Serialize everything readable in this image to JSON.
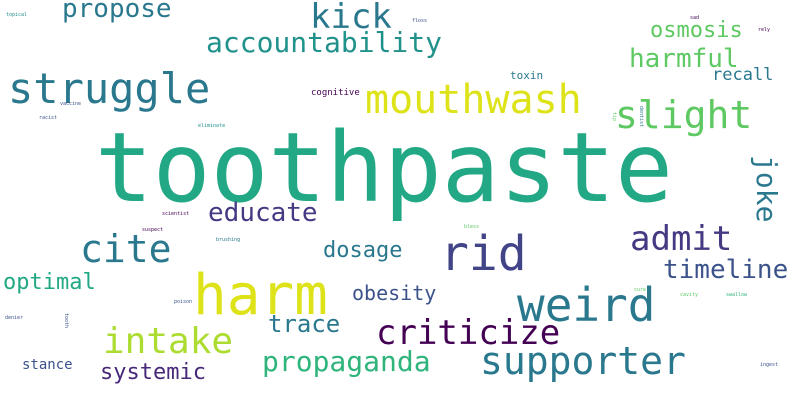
{
  "words": [
    {
      "text": "toothpaste",
      "color": "#22a884"
    },
    {
      "text": "harm",
      "color": "#dde318"
    },
    {
      "text": "struggle",
      "color": "#2a788e"
    },
    {
      "text": "mouthwash",
      "color": "#dde318"
    },
    {
      "text": "weird",
      "color": "#2a788e"
    },
    {
      "text": "rid",
      "color": "#414487"
    },
    {
      "text": "slight",
      "color": "#5ec962"
    },
    {
      "text": "cite",
      "color": "#2a788e"
    },
    {
      "text": "supporter",
      "color": "#2a788e"
    },
    {
      "text": "criticize",
      "color": "#440154"
    },
    {
      "text": "admit",
      "color": "#443983"
    },
    {
      "text": "intake",
      "color": "#addc30"
    },
    {
      "text": "accountability",
      "color": "#21918c"
    },
    {
      "text": "kick",
      "color": "#2a788e"
    },
    {
      "text": "propaganda",
      "color": "#2fb47c"
    },
    {
      "text": "propose",
      "color": "#2a788e"
    },
    {
      "text": "educate",
      "color": "#443983"
    },
    {
      "text": "timeline",
      "color": "#3b528b"
    },
    {
      "text": "joke",
      "color": "#2a788e"
    },
    {
      "text": "harmful",
      "color": "#5ec962"
    },
    {
      "text": "osmosis",
      "color": "#5ec962"
    },
    {
      "text": "trace",
      "color": "#2a788e"
    },
    {
      "text": "optimal",
      "color": "#22a884"
    },
    {
      "text": "systemic",
      "color": "#482878"
    },
    {
      "text": "dosage",
      "color": "#2a788e"
    },
    {
      "text": "obesity",
      "color": "#3b528b"
    },
    {
      "text": "recall",
      "color": "#2a788e"
    },
    {
      "text": "stance",
      "color": "#3b528b"
    },
    {
      "text": "toxin",
      "color": "#2a788e"
    },
    {
      "text": "cognitive",
      "color": "#440154"
    },
    {
      "text": "topical",
      "color": "#21918c"
    },
    {
      "text": "floss",
      "color": "#3b528b"
    },
    {
      "text": "sad",
      "color": "#440154"
    },
    {
      "text": "rely",
      "color": "#440154"
    },
    {
      "text": "vaccine",
      "color": "#3b528b"
    },
    {
      "text": "racist",
      "color": "#3b528b"
    },
    {
      "text": "eliminate",
      "color": "#21918c"
    },
    {
      "text": "scientist",
      "color": "#440154"
    },
    {
      "text": "suspect",
      "color": "#440154"
    },
    {
      "text": "brushing",
      "color": "#2a788e"
    },
    {
      "text": "bless",
      "color": "#5ec962"
    },
    {
      "text": "poison",
      "color": "#3b528b"
    },
    {
      "text": "denier",
      "color": "#3b528b"
    },
    {
      "text": "tooth",
      "color": "#3b528b"
    },
    {
      "text": "cure",
      "color": "#5ec962"
    },
    {
      "text": "cavity",
      "color": "#5ec962"
    },
    {
      "text": "swallow",
      "color": "#2fb47c"
    },
    {
      "text": "ingest",
      "color": "#3b528b"
    },
    {
      "text": "tip",
      "color": "#5ec962"
    },
    {
      "text": "dentist",
      "color": "#2a788e"
    }
  ]
}
